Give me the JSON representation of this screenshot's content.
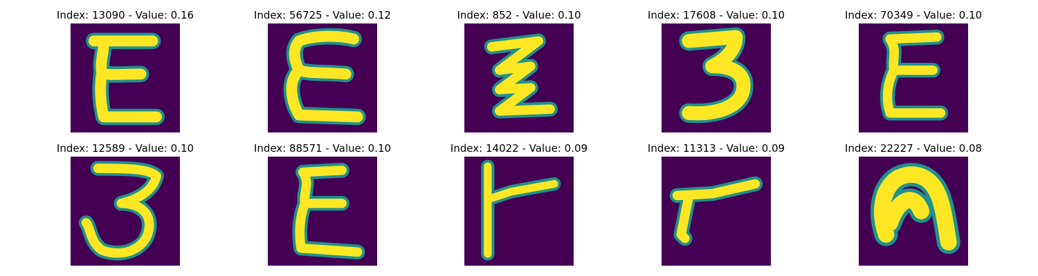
{
  "colors": {
    "background": "#440154",
    "edge": "#21918c",
    "stroke": "#fde725"
  },
  "panels": [
    {
      "index": "13090",
      "value": "0.16",
      "title": "Index: 13090 - Value: 0.16",
      "glyph": "E-like handwritten character"
    },
    {
      "index": "56725",
      "value": "0.12",
      "title": "Index: 56725 - Value: 0.12",
      "glyph": "E-like handwritten character"
    },
    {
      "index": "852",
      "value": "0.10",
      "title": "Index: 852 - Value: 0.10",
      "glyph": "zigzag handwritten character"
    },
    {
      "index": "17608",
      "value": "0.10",
      "title": "Index: 17608 - Value: 0.10",
      "glyph": "3-like handwritten character"
    },
    {
      "index": "70349",
      "value": "0.10",
      "title": "Index: 70349 - Value: 0.10",
      "glyph": "E-like handwritten character"
    },
    {
      "index": "12589",
      "value": "0.10",
      "title": "Index: 12589 - Value: 0.10",
      "glyph": "3-like handwritten character"
    },
    {
      "index": "88571",
      "value": "0.10",
      "title": "Index: 88571 - Value: 0.10",
      "glyph": "E-like handwritten character"
    },
    {
      "index": "14022",
      "value": "0.09",
      "title": "Index: 14022 - Value: 0.09",
      "glyph": "T-like handwritten character"
    },
    {
      "index": "11313",
      "value": "0.09",
      "title": "Index: 11313 - Value: 0.09",
      "glyph": "slanted T-like handwritten character"
    },
    {
      "index": "22227",
      "value": "0.08",
      "title": "Index: 22227 - Value: 0.08",
      "glyph": "n-like handwritten character"
    }
  ]
}
